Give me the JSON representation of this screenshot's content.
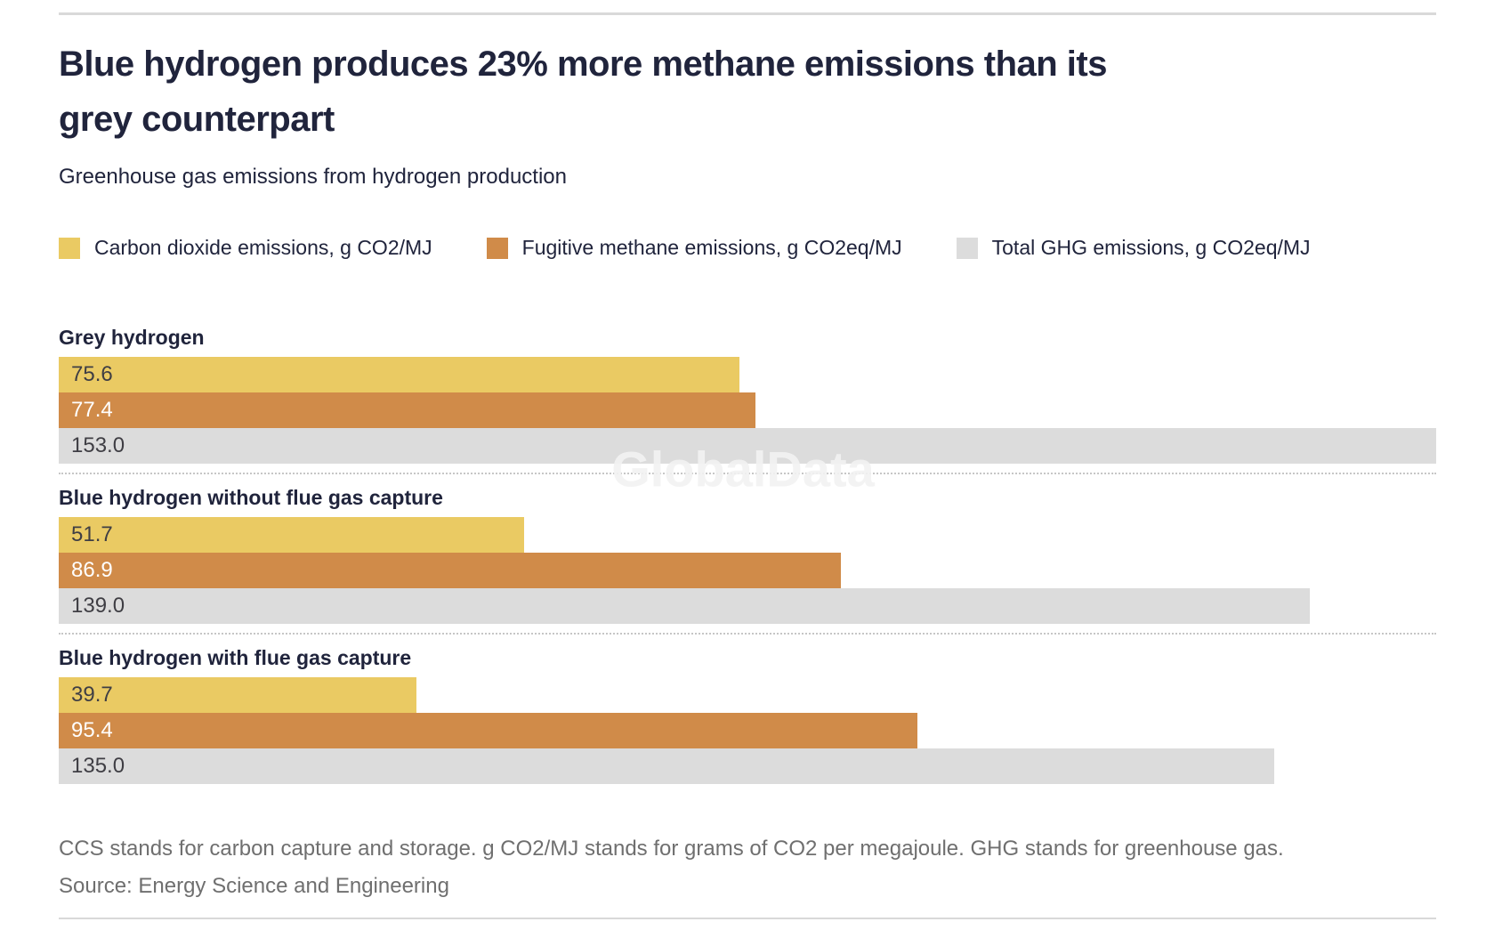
{
  "header": {
    "title_line1": "Blue hydrogen produces 23% more methane emissions than its",
    "title_line2": "grey counterpart",
    "subtitle": "Greenhouse gas emissions from hydrogen production"
  },
  "chart_data": {
    "type": "bar",
    "orientation": "horizontal",
    "title": "Blue hydrogen produces 23% more methane emissions than its grey counterpart",
    "subtitle": "Greenhouse gas emissions from hydrogen production",
    "categories": [
      "Grey hydrogen",
      "Blue hydrogen without flue gas capture",
      "Blue hydrogen with flue gas capture"
    ],
    "series": [
      {
        "name": "Carbon dioxide emissions, g CO2/MJ",
        "color": "#eaca63",
        "label_color": "#3f3e44",
        "values": [
          75.6,
          51.7,
          39.7
        ]
      },
      {
        "name": "Fugitive methane emissions, g CO2eq/MJ",
        "color": "#d08b49",
        "label_color": "#ffffff",
        "values": [
          77.4,
          86.9,
          95.4
        ]
      },
      {
        "name": "Total GHG emissions, g CO2eq/MJ",
        "color": "#dcdcdc",
        "label_color": "#3f3e44",
        "values": [
          153.0,
          139.0,
          135.0
        ]
      }
    ],
    "xlim": [
      0,
      153
    ],
    "value_labels": true,
    "value_decimals": 1,
    "legend_position": "top",
    "grid": false
  },
  "footer": {
    "note": "CCS stands for carbon capture and storage. g CO2/MJ stands for grams of CO2 per megajoule. GHG stands for greenhouse gas.",
    "source": "Source: Energy Science and Engineering"
  },
  "watermark": "GlobalData",
  "colors": {
    "title_text": "#20243c",
    "footnote_text": "#6f6f6f",
    "rule": "#d9d9d9",
    "separator": "#c6c6c6",
    "background": "#ffffff"
  }
}
